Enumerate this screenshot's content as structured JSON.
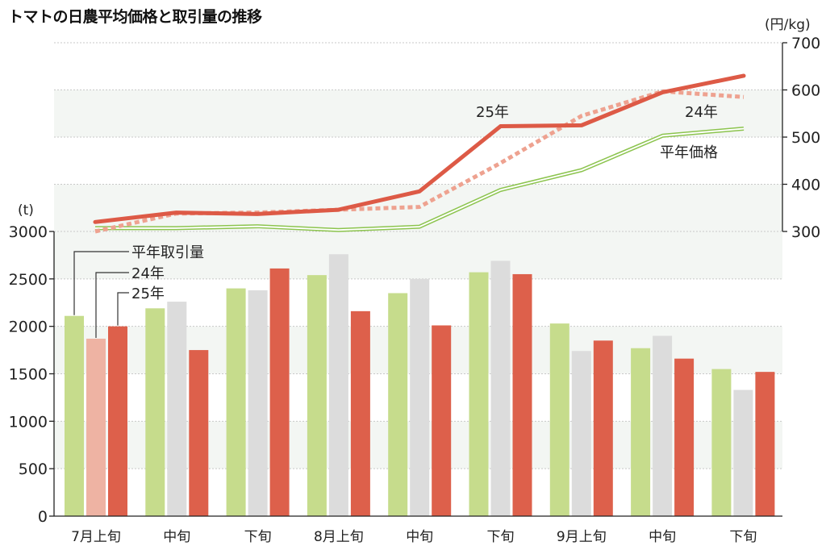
{
  "title": "トマトの日農平均価格と取引量の推移",
  "colors": {
    "bar_normal": "#c6dc8c",
    "bar_24": "#dcdcdc",
    "bar_24_first": "#eeb3a3",
    "bar_25": "#dd604b",
    "line_25": "#dd5a46",
    "line_24": "#eea290",
    "line_normal": "#8cc44e",
    "band": "#f3f6f3",
    "grid": "#c8c8c8"
  },
  "chart_data": [
    {
      "type": "line",
      "ylabel": "(円/kg)",
      "ylim": [
        300,
        700
      ],
      "yticks": [
        300,
        400,
        500,
        600,
        700
      ],
      "axis_side": "right",
      "categories": [
        "7月上旬",
        "中旬",
        "下旬",
        "8月上旬",
        "中旬",
        "下旬",
        "9月上旬",
        "中旬",
        "下旬"
      ],
      "series": [
        {
          "name": "25年",
          "style": "solid-thick",
          "values": [
            320,
            340,
            337,
            346,
            385,
            523,
            525,
            595,
            630
          ]
        },
        {
          "name": "24年",
          "style": "dotted",
          "values": [
            300,
            338,
            340,
            346,
            352,
            445,
            545,
            597,
            585
          ]
        },
        {
          "name": "平年価格",
          "style": "double-thin",
          "values": [
            307,
            307,
            311,
            303,
            310,
            388,
            430,
            503,
            518
          ]
        }
      ],
      "labels": [
        {
          "text": "25年",
          "series": "25年"
        },
        {
          "text": "24年",
          "series": "24年"
        },
        {
          "text": "平年価格",
          "series": "平年価格"
        }
      ]
    },
    {
      "type": "bar",
      "ylabel": "(t)",
      "ylim": [
        0,
        3000
      ],
      "yticks": [
        0,
        500,
        1000,
        1500,
        2000,
        2500,
        3000
      ],
      "axis_side": "left",
      "categories": [
        "7月上旬",
        "中旬",
        "下旬",
        "8月上旬",
        "中旬",
        "下旬",
        "9月上旬",
        "中旬",
        "下旬"
      ],
      "series": [
        {
          "name": "平年取引量",
          "values": [
            2110,
            2190,
            2400,
            2540,
            2350,
            2570,
            2030,
            1770,
            1550
          ]
        },
        {
          "name": "24年",
          "values": [
            1870,
            2260,
            2380,
            2760,
            2500,
            2690,
            1740,
            1900,
            1330
          ]
        },
        {
          "name": "25年",
          "values": [
            2000,
            1750,
            2610,
            2160,
            2010,
            2550,
            1850,
            1660,
            1520
          ]
        }
      ],
      "legend": [
        "平年取引量",
        "24年",
        "25年"
      ]
    }
  ]
}
